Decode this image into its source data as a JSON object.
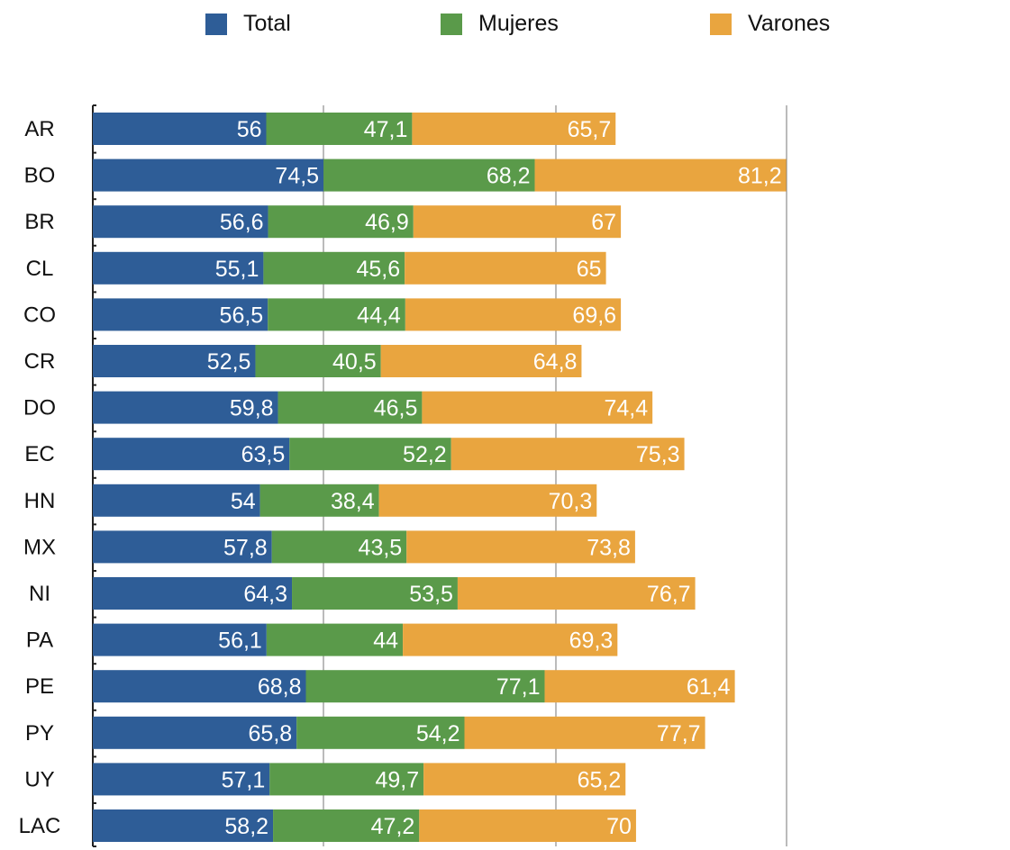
{
  "chart_data": {
    "type": "bar",
    "stacked": true,
    "orientation": "horizontal",
    "categories": [
      "AR",
      "BO",
      "BR",
      "CL",
      "CO",
      "CR",
      "DO",
      "EC",
      "HN",
      "MX",
      "NI",
      "PA",
      "PE",
      "PY",
      "UY",
      "LAC"
    ],
    "series": [
      {
        "name": "Total",
        "color": "#2e5d97",
        "values": [
          56,
          74.5,
          56.6,
          55.1,
          56.5,
          52.5,
          59.8,
          63.5,
          54,
          57.8,
          64.3,
          56.1,
          68.8,
          65.8,
          57.1,
          58.2
        ]
      },
      {
        "name": "Mujeres",
        "color": "#5a9a4a",
        "values": [
          47.1,
          68.2,
          46.9,
          45.6,
          44.4,
          40.5,
          46.5,
          52.2,
          38.4,
          43.5,
          53.5,
          44,
          77.1,
          54.2,
          49.7,
          47.2
        ]
      },
      {
        "name": "Varones",
        "color": "#e9a53f",
        "values": [
          65.7,
          81.2,
          67,
          65,
          69.6,
          64.8,
          74.4,
          75.3,
          70.3,
          73.8,
          76.7,
          69.3,
          61.4,
          77.7,
          65.2,
          70
        ]
      }
    ],
    "labels": {
      "AR": [
        "56",
        "47,1",
        "65,7"
      ],
      "BO": [
        "74,5",
        "68,2",
        "81,2"
      ],
      "BR": [
        "56,6",
        "46,9",
        "67"
      ],
      "CL": [
        "55,1",
        "45,6",
        "65"
      ],
      "CO": [
        "56,5",
        "44,4",
        "69,6"
      ],
      "CR": [
        "52,5",
        "40,5",
        "64,8"
      ],
      "DO": [
        "59,8",
        "46,5",
        "74,4"
      ],
      "EC": [
        "63,5",
        "52,2",
        "75,3"
      ],
      "HN": [
        "54",
        "38,4",
        "70,3"
      ],
      "MX": [
        "57,8",
        "43,5",
        "73,8"
      ],
      "NI": [
        "64,3",
        "53,5",
        "76,7"
      ],
      "PA": [
        "56,1",
        "44",
        "69,3"
      ],
      "PE": [
        "68,8",
        "77,1",
        "61,4"
      ],
      "PY": [
        "65,8",
        "54,2",
        "77,7"
      ],
      "UY": [
        "57,1",
        "49,7",
        "65,2"
      ],
      "LAC": [
        "58,2",
        "47,2",
        "70"
      ]
    },
    "xlim": [
      0,
      224
    ],
    "grid": true,
    "legend_position": "top",
    "title": "",
    "xlabel": "",
    "ylabel": ""
  }
}
